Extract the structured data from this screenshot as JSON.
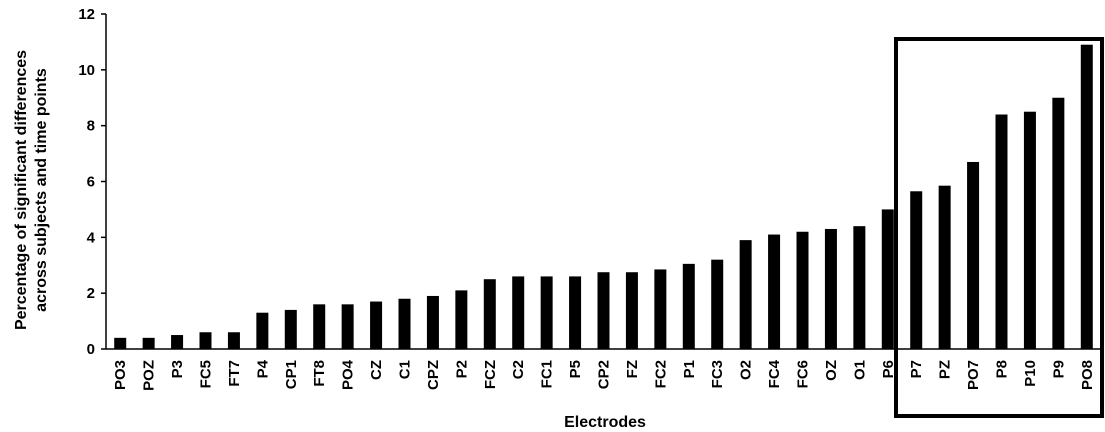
{
  "chart_data": {
    "type": "bar",
    "title": "",
    "xlabel": "Electrodes",
    "ylabel_lines": [
      "Percentage of significant differences",
      "across subjects and time points"
    ],
    "ylim": [
      0,
      12
    ],
    "yticks": [
      0,
      2,
      4,
      6,
      8,
      10,
      12
    ],
    "grid": false,
    "bar_color": "#000000",
    "categories": [
      "PO3",
      "POZ",
      "P3",
      "FC5",
      "FT7",
      "P4",
      "CP1",
      "FT8",
      "PO4",
      "CZ",
      "C1",
      "CPZ",
      "P2",
      "FCZ",
      "C2",
      "FC1",
      "P5",
      "CP2",
      "FZ",
      "FC2",
      "P1",
      "FC3",
      "O2",
      "FC4",
      "FC6",
      "OZ",
      "O1",
      "P6",
      "P7",
      "PZ",
      "PO7",
      "P8",
      "P10",
      "P9",
      "PO8"
    ],
    "values": [
      0.4,
      0.4,
      0.5,
      0.6,
      0.6,
      1.3,
      1.4,
      1.6,
      1.6,
      1.7,
      1.8,
      1.9,
      2.1,
      2.5,
      2.6,
      2.6,
      2.6,
      2.75,
      2.75,
      2.85,
      3.05,
      3.2,
      3.9,
      4.1,
      4.2,
      4.3,
      4.4,
      5.0,
      5.65,
      5.85,
      6.7,
      8.4,
      8.5,
      9.0,
      10.9
    ],
    "highlight_box": {
      "from_category": "P7",
      "to_category": "PO8"
    }
  }
}
